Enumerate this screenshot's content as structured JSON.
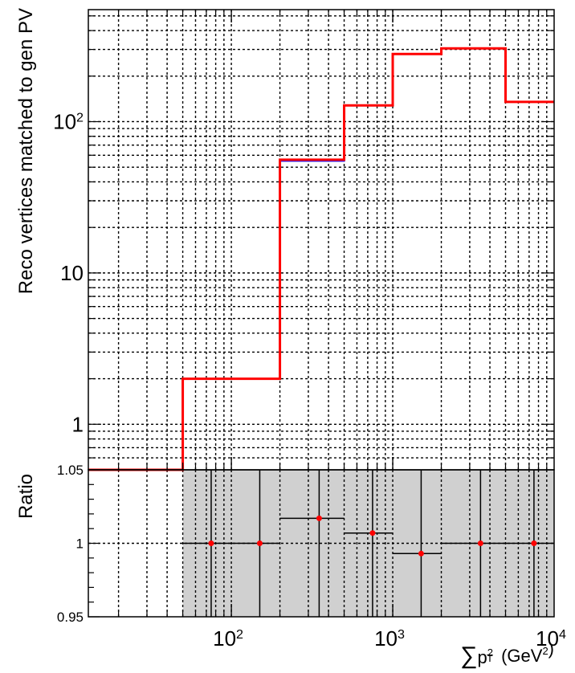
{
  "chart_data": [
    {
      "type": "line",
      "title": "",
      "xlabel": "",
      "ylabel": "Reco vertices matched to gen PV",
      "x_scale": "log",
      "y_scale": "log",
      "xlim": [
        13,
        10000
      ],
      "ylim": [
        0.5,
        550
      ],
      "y_tick_labels": [
        {
          "value": 1,
          "label": "1"
        },
        {
          "value": 10,
          "label": "10"
        },
        {
          "value": 100,
          "label": "10",
          "exp": "2"
        }
      ],
      "grid": true,
      "legend": "none",
      "colors": {
        "series_a": "#ff0000",
        "series_b": "#0000ff"
      },
      "bins": [
        {
          "low": 13,
          "high": 50,
          "a": 0.5,
          "b": 0.5
        },
        {
          "low": 50,
          "high": 200,
          "a": 2,
          "b": 2
        },
        {
          "low": 200,
          "high": 500,
          "a": 56,
          "b": 55
        },
        {
          "low": 500,
          "high": 1000,
          "a": 128,
          "b": 128
        },
        {
          "low": 1000,
          "high": 2000,
          "a": 280,
          "b": 280
        },
        {
          "low": 2000,
          "high": 5000,
          "a": 305,
          "b": 305
        },
        {
          "low": 5000,
          "high": 10000,
          "a": 135,
          "b": 135
        }
      ]
    },
    {
      "type": "scatter",
      "title": "",
      "xlabel": "∑p²T (GeV²)",
      "ylabel": "Ratio",
      "x_scale": "log",
      "xlim": [
        13,
        10000
      ],
      "ylim": [
        0.95,
        1.05
      ],
      "x_tick_labels": [
        {
          "value": 100,
          "label": "10",
          "exp": "2"
        },
        {
          "value": 1000,
          "label": "10",
          "exp": "3"
        },
        {
          "value": 10000,
          "label": "10",
          "exp": "4"
        }
      ],
      "y_tick_labels": [
        {
          "value": 0.95,
          "label": "0.95"
        },
        {
          "value": 1.0,
          "label": "1"
        },
        {
          "value": 1.05,
          "label": "1.05"
        }
      ],
      "grid": true,
      "band": {
        "x_from": 50,
        "x_to": 10000,
        "color": "#d0d0d0"
      },
      "point_color": "#ff0000",
      "points": [
        {
          "x": 75,
          "xlo": 50,
          "xhi": 100,
          "y": 1.0
        },
        {
          "x": 150,
          "xlo": 100,
          "xhi": 200,
          "y": 1.0
        },
        {
          "x": 350,
          "xlo": 200,
          "xhi": 500,
          "y": 1.017
        },
        {
          "x": 750,
          "xlo": 500,
          "xhi": 1000,
          "y": 1.007
        },
        {
          "x": 1500,
          "xlo": 1000,
          "xhi": 2000,
          "y": 0.993
        },
        {
          "x": 3500,
          "xlo": 2000,
          "xhi": 5000,
          "y": 1.0
        },
        {
          "x": 7500,
          "xlo": 5000,
          "xhi": 10000,
          "y": 1.0
        }
      ]
    }
  ]
}
